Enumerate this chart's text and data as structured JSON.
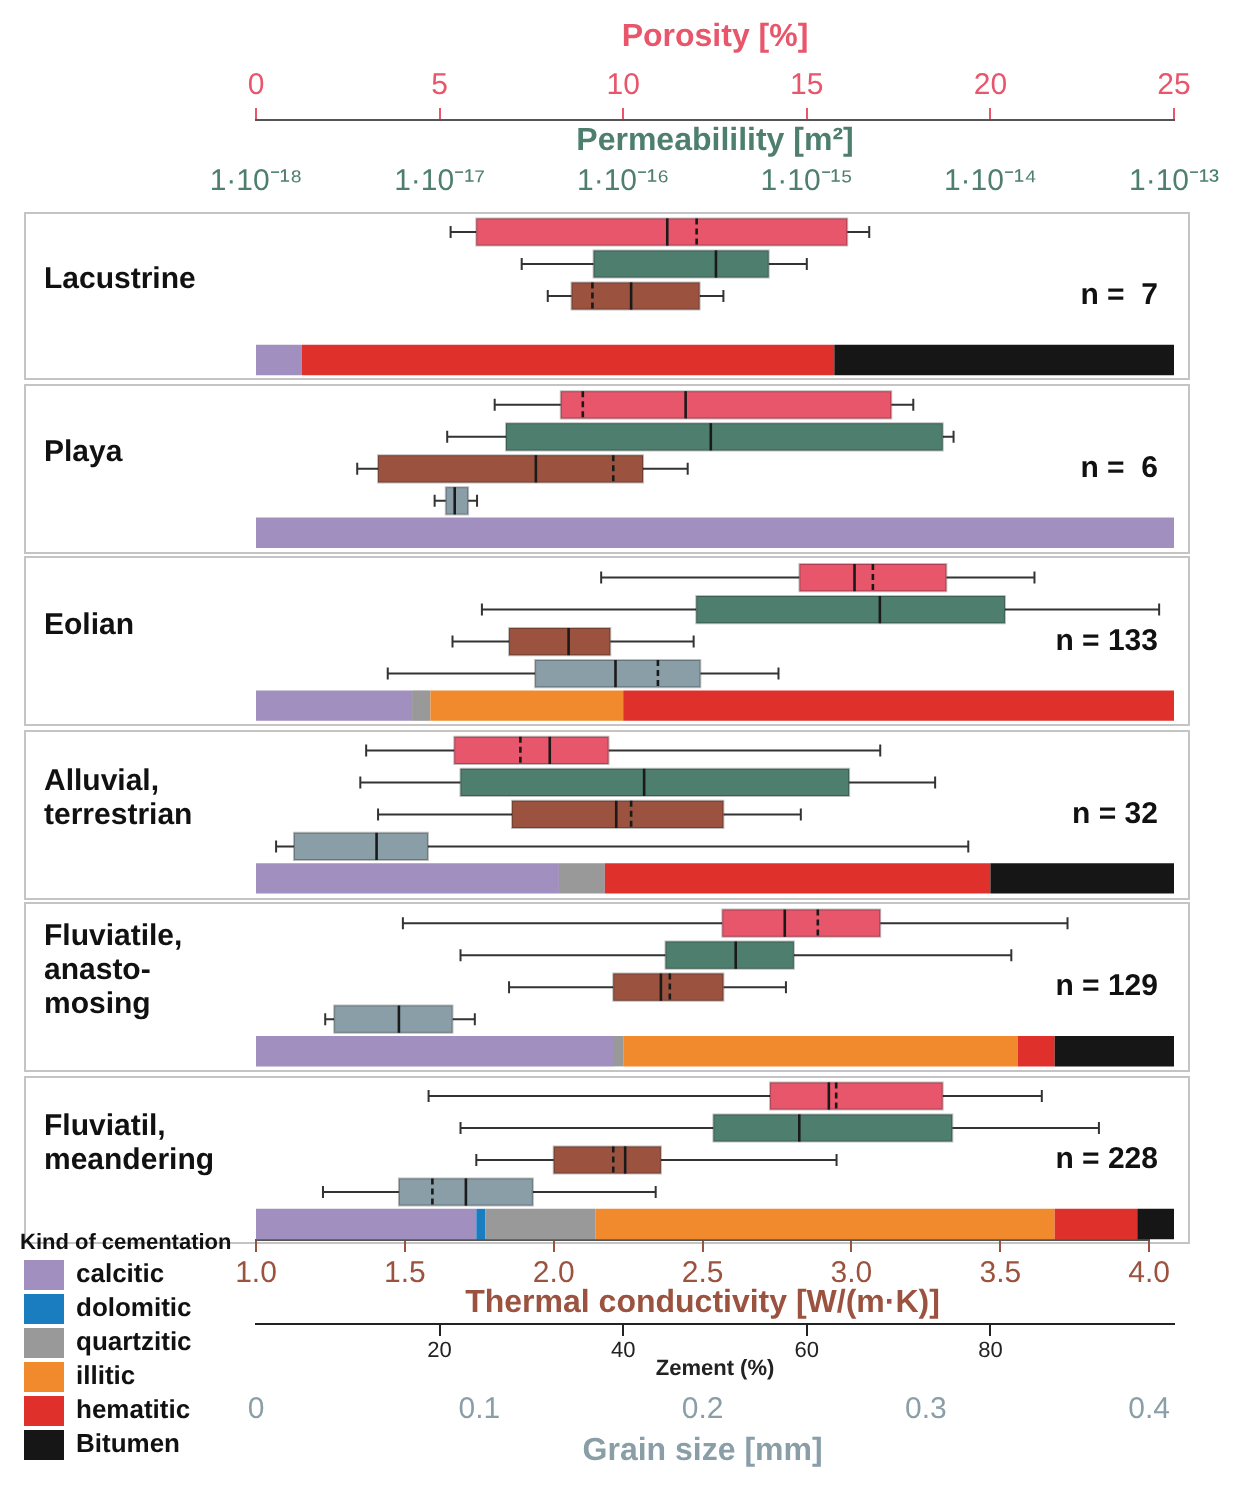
{
  "chart_data": [
    {
      "type": "box",
      "orientation": "horizontal",
      "log": "x2",
      "categories": [
        "Lacustrine",
        "Playa",
        "Eolian",
        "Alluvial, terrestrian",
        "Fluviatile, anasto-mosing",
        "Fluviatil, meandering"
      ],
      "xlim": [
        0,
        25
      ],
      "xticks": [
        0,
        5,
        10,
        15,
        20,
        25
      ],
      "xlabel": "Porosity [%]",
      "x2lim": [
        1e-18,
        1e-13
      ],
      "x2ticks": [
        {
          "value": 1e-18,
          "label": "1·10⁻¹⁸"
        },
        {
          "value": 1e-17,
          "label": "1·10⁻¹⁷"
        },
        {
          "value": 1e-16,
          "label": "1·10⁻¹⁶"
        },
        {
          "value": 1e-15,
          "label": "1·10⁻¹⁵"
        },
        {
          "value": 1e-14,
          "label": "1·10⁻¹⁴"
        },
        {
          "value": 1e-13,
          "label": "1·10⁻¹³"
        }
      ],
      "x2label": "Permeabilility [m²]",
      "annotations": [
        "n =  7",
        "n =  6",
        "n = 133",
        "n = 32",
        "n = 129",
        "n = 228"
      ],
      "series": [
        {
          "type": "box",
          "color": "#e8566c",
          "boxes": [
            {
              "low": 5.3,
              "q1": 6.0,
              "median": 11.2,
              "mean": 12.0,
              "q3": 16.1,
              "high": 16.7
            },
            {
              "low": 6.5,
              "q1": 8.3,
              "median": 11.7,
              "mean": 8.9,
              "q3": 17.3,
              "high": 17.9
            },
            {
              "low": 9.4,
              "q1": 14.8,
              "median": 16.3,
              "mean": 16.8,
              "q3": 18.8,
              "high": 21.2
            },
            {
              "low": 3.0,
              "q1": 5.4,
              "median": 8.0,
              "mean": 7.2,
              "q3": 9.6,
              "high": 17.0
            },
            {
              "low": 4.0,
              "q1": 12.7,
              "median": 14.4,
              "mean": 15.3,
              "q3": 17.0,
              "high": 22.1
            },
            {
              "low": 4.7,
              "q1": 14.0,
              "median": 15.6,
              "mean": 15.8,
              "q3": 18.7,
              "high": 21.4
            }
          ]
        },
        {
          "type": "box",
          "axis": "x2",
          "color": "#4e7f6e",
          "boxes": [
            {
              "low": 2.8e-17,
              "q1": 6.9e-17,
              "median": 3.2e-16,
              "q3": 6.2e-16,
              "high": 1e-15
            },
            {
              "low": 1.1e-17,
              "q1": 2.3e-17,
              "median": 3e-16,
              "q3": 5.5e-15,
              "high": 6.3e-15
            },
            {
              "low": 1.7e-17,
              "q1": 2.5e-16,
              "median": 2.5e-15,
              "q3": 1.2e-14,
              "high": 8.3e-14
            },
            {
              "low": 3.7e-18,
              "q1": 1.3e-17,
              "median": 1.3e-16,
              "q3": 1.7e-15,
              "high": 5e-15
            },
            {
              "low": 1.3e-17,
              "q1": 1.7e-16,
              "median": 4.1e-16,
              "q3": 8.5e-16,
              "high": 1.3e-14
            },
            {
              "low": 1.3e-17,
              "q1": 3.1e-16,
              "median": 9.1e-16,
              "q3": 6.2e-15,
              "high": 3.9e-14
            }
          ]
        }
      ]
    },
    {
      "type": "box",
      "orientation": "horizontal",
      "categories": [
        null,
        null,
        null,
        null,
        null,
        null
      ],
      "xlim": [
        1,
        4
      ],
      "xticks": [
        {
          "value": 1,
          "label": "1.0"
        },
        1.5,
        {
          "value": 2,
          "label": "2.0"
        },
        2.5,
        {
          "value": 3,
          "label": "3.0"
        },
        3.5,
        {
          "value": 4,
          "label": "4.0"
        }
      ],
      "xlabel": "Thermal conductivity [W/(m·K)]",
      "x2lim": [
        0,
        0.4
      ],
      "x2ticks": [
        0,
        0.1,
        0.2,
        0.3,
        0.4
      ],
      "x2label": "Grain size [mm]",
      "series": [
        {
          "type": "box",
          "color": "#9b5340",
          "boxes": [
            {
              "low": 1.98,
              "q1": 2.06,
              "median": 2.26,
              "mean": 2.13,
              "q3": 2.49,
              "high": 2.57
            },
            {
              "low": 1.34,
              "q1": 1.41,
              "median": 1.94,
              "mean": 2.2,
              "q3": 2.3,
              "high": 2.45
            },
            {
              "low": 1.66,
              "q1": 1.85,
              "median": 2.05,
              "q3": 2.19,
              "high": 2.47
            },
            {
              "low": 1.41,
              "q1": 1.86,
              "median": 2.21,
              "mean": 2.26,
              "q3": 2.57,
              "high": 2.83
            },
            {
              "low": 1.85,
              "q1": 2.2,
              "median": 2.36,
              "mean": 2.39,
              "q3": 2.57,
              "high": 2.78
            },
            {
              "low": 1.74,
              "q1": 2.0,
              "median": 2.24,
              "mean": 2.2,
              "q3": 2.36,
              "high": 2.95
            }
          ]
        },
        {
          "type": "box",
          "axis": "x2",
          "color": "#8a9ea8",
          "boxes": [
            null,
            {
              "low": 0.08,
              "q1": 0.085,
              "median": 0.089,
              "q3": 0.095,
              "high": 0.099
            },
            {
              "low": 0.059,
              "q1": 0.125,
              "median": 0.161,
              "mean": 0.18,
              "q3": 0.199,
              "high": 0.234
            },
            {
              "low": 0.009,
              "q1": 0.017,
              "median": 0.054,
              "q3": 0.077,
              "high": 0.319
            },
            {
              "low": 0.031,
              "q1": 0.035,
              "median": 0.064,
              "q3": 0.088,
              "high": 0.098
            },
            {
              "low": 0.03,
              "q1": 0.064,
              "median": 0.094,
              "mean": 0.079,
              "q3": 0.124,
              "high": 0.179
            }
          ]
        }
      ]
    },
    {
      "type": "bar",
      "orientation": "horizontal",
      "stacked": true,
      "categories": [
        null,
        null,
        null,
        null,
        null,
        null
      ],
      "xlim": [
        0,
        100
      ],
      "xticks": [
        20,
        40,
        60,
        80
      ],
      "xlabel": "Zement (%)",
      "legend": "bottom left",
      "legend_title": "Kind of cementation",
      "series": [
        {
          "name": "calcitic",
          "color": "#a08fbf",
          "values": [
            5,
            100,
            17,
            33,
            39,
            24
          ]
        },
        {
          "name": "dolomitic",
          "color": "#1a7dc0",
          "values": [
            0,
            0,
            0,
            0,
            0,
            1
          ]
        },
        {
          "name": "quartzitic",
          "color": "#999999",
          "values": [
            0,
            0,
            2,
            5,
            1,
            12
          ]
        },
        {
          "name": "illitic",
          "color": "#f08a2c",
          "values": [
            0,
            0,
            21,
            0,
            43,
            50
          ]
        },
        {
          "name": "hematitic",
          "color": "#e0302c",
          "values": [
            58,
            0,
            60,
            42,
            4,
            9
          ]
        },
        {
          "name": "Bitumen",
          "color": "#161616",
          "values": [
            37,
            0,
            0,
            20,
            13,
            4
          ]
        }
      ]
    }
  ]
}
